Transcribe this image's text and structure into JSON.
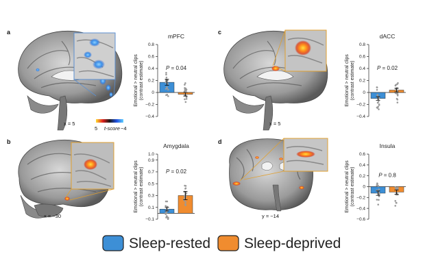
{
  "panels": [
    {
      "letter": "a",
      "coord": "x = 5",
      "colorbar": {
        "min": "5",
        "label": "t-score",
        "max": "−4"
      }
    },
    {
      "letter": "b",
      "coord": "x = −30"
    },
    {
      "letter": "c",
      "coord": "x = 5"
    },
    {
      "letter": "d",
      "coord": "y = −14"
    }
  ],
  "chart_data": [
    {
      "type": "bar",
      "title": "mPFC",
      "ylabel": "Emotional > neutral clips",
      "ylabel2": "(contrast estimate)",
      "ylim": [
        -0.4,
        0.8
      ],
      "yticks": [
        -0.4,
        -0.2,
        0,
        0.2,
        0.4,
        0.6,
        0.8
      ],
      "ytick_labels": [
        "−0.4",
        "−0.2",
        "0",
        "0.2",
        "0.4",
        "0.6",
        "0.8"
      ],
      "annotation": "P = 0.04",
      "series": [
        {
          "name": "Sleep-rested",
          "value": 0.17,
          "error": 0.05,
          "color": "#3d8fd6"
        },
        {
          "name": "Sleep-deprived",
          "value": -0.03,
          "error": 0.03,
          "color": "#f08c2f"
        }
      ]
    },
    {
      "type": "bar",
      "title": "Amygdala",
      "ylabel": "Emotional > neutral clips",
      "ylabel2": "(contrast estimate)",
      "ylim": [
        -0.1,
        1.0
      ],
      "yticks": [
        -0.1,
        0.1,
        0.3,
        0.5,
        0.7,
        0.9,
        1.0
      ],
      "ytick_labels": [
        "−0.1",
        "0.1",
        "0.3",
        "0.5",
        "0.7",
        "0.9",
        "1.0"
      ],
      "annotation": "P = 0.02",
      "series": [
        {
          "name": "Sleep-rested",
          "value": 0.07,
          "error": 0.03,
          "color": "#3d8fd6"
        },
        {
          "name": "Sleep-deprived",
          "value": 0.3,
          "error": 0.07,
          "color": "#f08c2f"
        }
      ]
    },
    {
      "type": "bar",
      "title": "dACC",
      "ylabel": "Emotional > neutral clips",
      "ylabel2": "(contrast estimate)",
      "ylim": [
        -0.4,
        0.8
      ],
      "yticks": [
        -0.4,
        -0.2,
        0,
        0.2,
        0.4,
        0.6,
        0.8
      ],
      "ytick_labels": [
        "−0.4",
        "−0.2",
        "0",
        "0.2",
        "0.4",
        "0.6",
        "0.8"
      ],
      "annotation": "P = 0.02",
      "series": [
        {
          "name": "Sleep-rested",
          "value": -0.1,
          "error": 0.03,
          "color": "#3d8fd6"
        },
        {
          "name": "Sleep-deprived",
          "value": 0.04,
          "error": 0.03,
          "color": "#f08c2f"
        }
      ]
    },
    {
      "type": "bar",
      "title": "Insula",
      "ylabel": "Emotional > neutral clips",
      "ylabel2": "(contrast estimate)",
      "ylim": [
        -0.6,
        0.6
      ],
      "yticks": [
        -0.6,
        -0.4,
        -0.2,
        0,
        0.2,
        0.4,
        0.6
      ],
      "ytick_labels": [
        "−0.6",
        "−0.4",
        "−0.2",
        "0",
        "0.2",
        "0.4",
        "0.6"
      ],
      "annotation": "P = 0.8",
      "series": [
        {
          "name": "Sleep-rested",
          "value": -0.12,
          "error": 0.04,
          "color": "#3d8fd6"
        },
        {
          "name": "Sleep-deprived",
          "value": -0.1,
          "error": 0.04,
          "color": "#f08c2f"
        }
      ]
    }
  ],
  "legend": [
    {
      "name": "Sleep-rested",
      "color": "#3d8fd6"
    },
    {
      "name": "Sleep-deprived",
      "color": "#f08c2f"
    }
  ]
}
